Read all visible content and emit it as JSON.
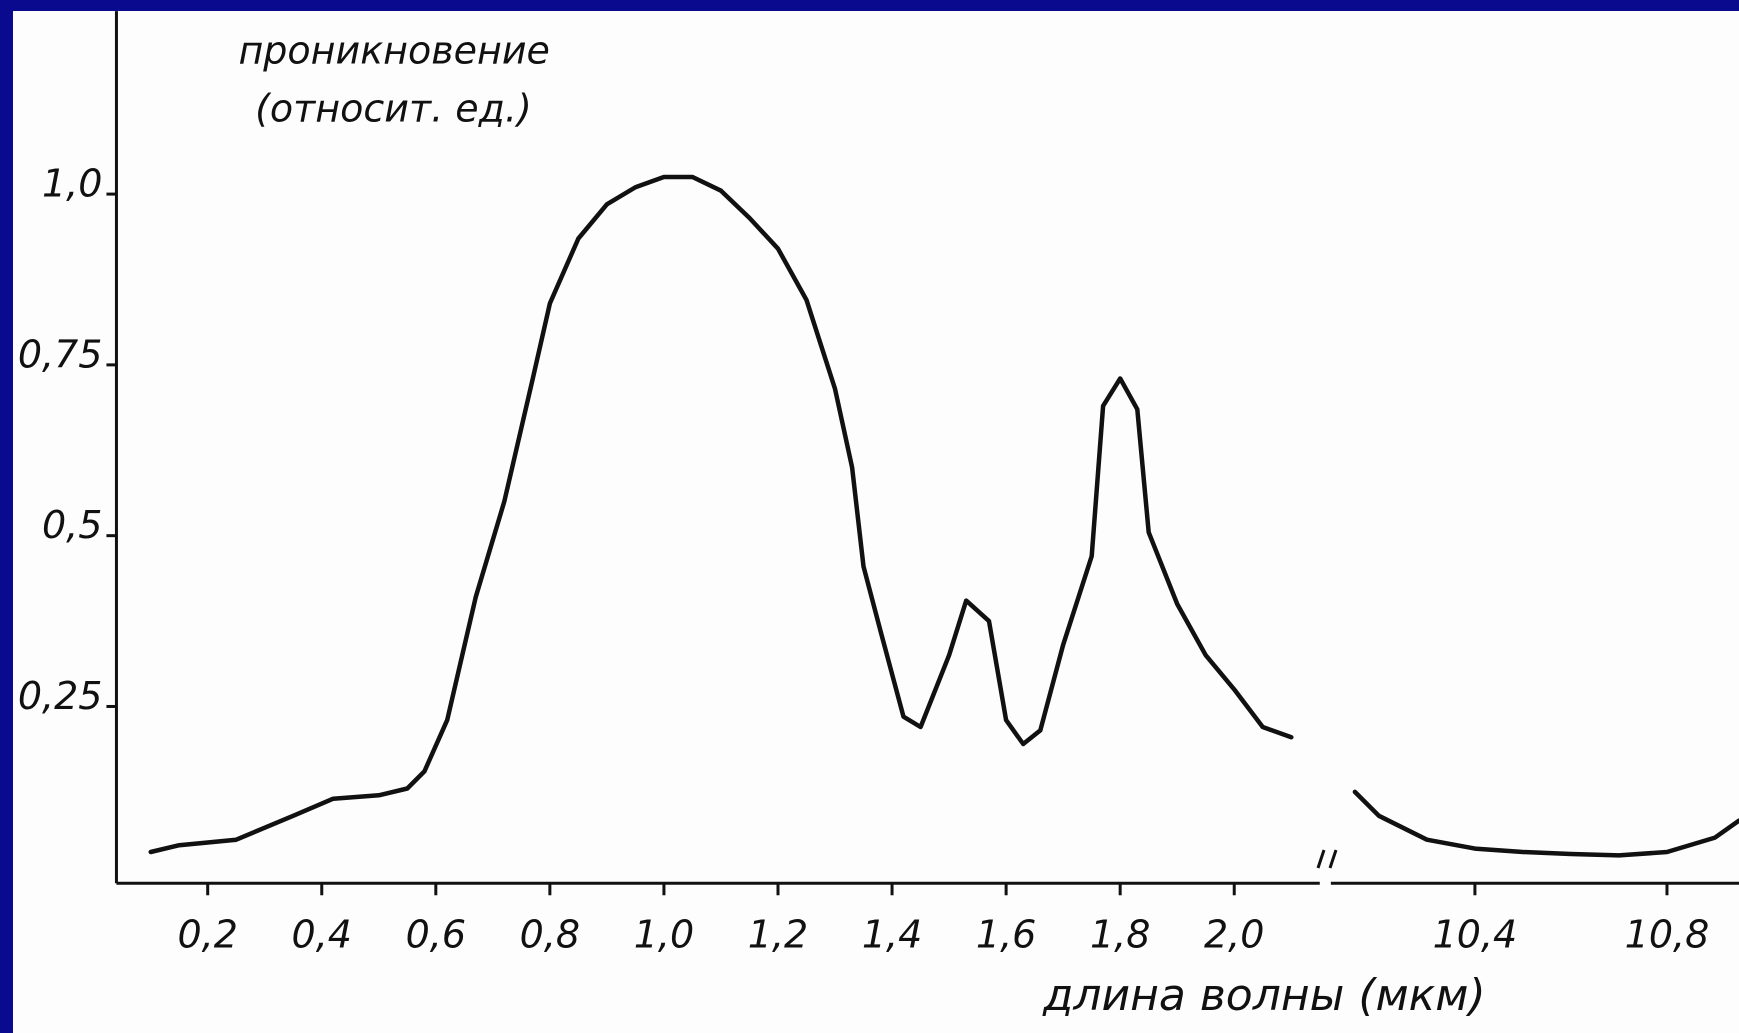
{
  "chart_data": [
    {
      "type": "line",
      "color": "#111111",
      "ylabel": [
        "проникновение",
        "(относит. ед.)"
      ],
      "xlim": [
        0.04,
        2.15
      ],
      "ylim": [
        0,
        1.25
      ],
      "xticks": [
        {
          "value": 0.2,
          "label": "0,2"
        },
        {
          "value": 0.4,
          "label": "0,4"
        },
        {
          "value": 0.6,
          "label": "0,6"
        },
        {
          "value": 0.8,
          "label": "0,8"
        },
        {
          "value": 1.0,
          "label": "1,0"
        },
        {
          "value": 1.2,
          "label": "1,2"
        },
        {
          "value": 1.4,
          "label": "1,4"
        },
        {
          "value": 1.6,
          "label": "1,6"
        },
        {
          "value": 1.8,
          "label": "1,8"
        },
        {
          "value": 2.0,
          "label": "2,0"
        }
      ],
      "yticks": [
        {
          "value": 0.25,
          "label": "0,25"
        },
        {
          "value": 0.5,
          "label": "0,5"
        },
        {
          "value": 0.75,
          "label": "0,75"
        },
        {
          "value": 1.0,
          "label": "1,0"
        }
      ],
      "x": [
        0.1,
        0.15,
        0.25,
        0.35,
        0.42,
        0.5,
        0.55,
        0.58,
        0.62,
        0.67,
        0.72,
        0.77,
        0.8,
        0.85,
        0.9,
        0.95,
        1.0,
        1.05,
        1.1,
        1.15,
        1.2,
        1.25,
        1.3,
        1.33,
        1.35,
        1.38,
        1.42,
        1.45,
        1.5,
        1.53,
        1.57,
        1.6,
        1.63,
        1.66,
        1.7,
        1.75,
        1.77,
        1.8,
        1.83,
        1.85,
        1.9,
        1.95,
        2.0,
        2.05,
        2.1
      ],
      "values": [
        0.037,
        0.047,
        0.055,
        0.09,
        0.115,
        0.12,
        0.13,
        0.155,
        0.23,
        0.41,
        0.55,
        0.73,
        0.84,
        0.935,
        0.985,
        1.01,
        1.025,
        1.025,
        1.005,
        0.965,
        0.92,
        0.845,
        0.715,
        0.6,
        0.455,
        0.36,
        0.235,
        0.22,
        0.325,
        0.405,
        0.375,
        0.23,
        0.195,
        0.215,
        0.34,
        0.47,
        0.69,
        0.73,
        0.685,
        0.505,
        0.4,
        0.325,
        0.275,
        0.22,
        0.205
      ]
    },
    {
      "type": "line",
      "color": "#111111",
      "xlabel": "длина волны (мкм)",
      "xlim": [
        10.1,
        10.95
      ],
      "ylim": [
        0,
        1.25
      ],
      "xticks": [
        {
          "value": 10.4,
          "label": "10,4"
        },
        {
          "value": 10.8,
          "label": "10,8"
        }
      ],
      "x": [
        10.15,
        10.2,
        10.3,
        10.4,
        10.5,
        10.6,
        10.7,
        10.8,
        10.9,
        10.95
      ],
      "values": [
        0.125,
        0.09,
        0.055,
        0.042,
        0.037,
        0.034,
        0.032,
        0.037,
        0.058,
        0.083
      ]
    }
  ]
}
